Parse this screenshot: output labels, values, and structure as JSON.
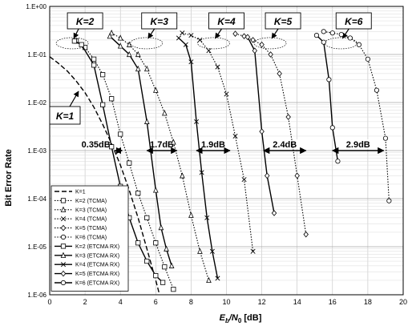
{
  "chart_data": {
    "type": "line",
    "title": "",
    "xlabel_main": "E",
    "xlabel_sub_b": "b",
    "xlabel_slash": "/N",
    "xlabel_sub_0": "0",
    "xlabel_unit": " [dB]",
    "ylabel": "Bit Error Rate",
    "xlim": [
      0,
      20
    ],
    "ylim": [
      1e-06,
      1
    ],
    "y_scale": "log",
    "grid": true,
    "x_ticks": [
      "0",
      "2",
      "4",
      "6",
      "8",
      "10",
      "12",
      "14",
      "16",
      "18",
      "20"
    ],
    "y_ticks": [
      "1.E+00",
      "1.E-01",
      "1.E-02",
      "1.E-03",
      "1.E-04",
      "1.E-05",
      "1.E-06"
    ],
    "legend_position": "bottom-left",
    "series": [
      {
        "name": "K=1",
        "style": "dash",
        "marker": "none",
        "x": [
          0,
          0.5,
          1,
          1.5,
          2,
          2.5,
          3,
          3.5,
          4,
          4.5,
          5,
          5.5,
          6,
          6.5
        ],
        "y": [
          0.09,
          0.065,
          0.045,
          0.028,
          0.016,
          0.008,
          0.0035,
          0.0014,
          0.0005,
          0.00015,
          4e-05,
          9e-06,
          2e-06,
          4e-07
        ]
      },
      {
        "name": "K=2 (TCMA)",
        "style": "dot",
        "marker": "square",
        "x": [
          1.5,
          2,
          2.5,
          3,
          3.5,
          4,
          4.5,
          5,
          5.5,
          6,
          6.5,
          7
        ],
        "y": [
          0.19,
          0.14,
          0.08,
          0.038,
          0.012,
          0.0022,
          0.00055,
          0.00013,
          4e-05,
          1.2e-05,
          3.8e-06,
          1.3e-06
        ]
      },
      {
        "name": "K=3 (TCMA)",
        "style": "dot",
        "marker": "triangle",
        "x": [
          3.5,
          4,
          4.5,
          5,
          5.5,
          6,
          6.5,
          7,
          7.5,
          8,
          8.5,
          9
        ],
        "y": [
          0.28,
          0.22,
          0.16,
          0.1,
          0.05,
          0.018,
          0.006,
          0.0015,
          0.0003,
          4.5e-05,
          8e-06,
          2e-06
        ]
      },
      {
        "name": "K=4 (TCMA)",
        "style": "dot",
        "marker": "x",
        "x": [
          7.5,
          8,
          8.5,
          9,
          9.5,
          10,
          10.5,
          11,
          11.5
        ],
        "y": [
          0.28,
          0.25,
          0.2,
          0.12,
          0.055,
          0.015,
          0.002,
          0.00025,
          8e-06
        ]
      },
      {
        "name": "K=5 (TCMA)",
        "style": "dot",
        "marker": "diamond",
        "x": [
          10.5,
          11,
          11.5,
          12,
          12.5,
          13,
          13.5,
          14,
          14.5
        ],
        "y": [
          0.27,
          0.24,
          0.2,
          0.16,
          0.1,
          0.04,
          0.005,
          0.0003,
          1.8e-05
        ]
      },
      {
        "name": "K=6 (TCMA)",
        "style": "dot",
        "marker": "circle",
        "x": [
          15.5,
          16,
          16.5,
          17,
          17.5,
          18,
          18.5,
          19,
          19.2
        ],
        "y": [
          0.3,
          0.28,
          0.26,
          0.22,
          0.16,
          0.08,
          0.018,
          0.0018,
          9e-05
        ]
      },
      {
        "name": "K=2 (ETCMA RX)",
        "style": "solid",
        "marker": "square",
        "x": [
          1.4,
          1.8,
          2.5,
          3,
          3.5,
          4,
          4.5,
          5,
          5.5,
          6,
          6.4
        ],
        "y": [
          0.19,
          0.16,
          0.06,
          0.009,
          0.0012,
          0.00018,
          4e-05,
          1.2e-05,
          5e-06,
          2.5e-06,
          1.8e-06
        ]
      },
      {
        "name": "K=3 (ETCMA RX)",
        "style": "solid",
        "marker": "triangle",
        "x": [
          3.4,
          4,
          4.5,
          5,
          5.5,
          6,
          6.3,
          6.6,
          6.9
        ],
        "y": [
          0.24,
          0.15,
          0.1,
          0.05,
          0.004,
          0.00015,
          2.5e-05,
          9e-06,
          4e-06
        ]
      },
      {
        "name": "K=4 (ETCMA RX)",
        "style": "solid",
        "marker": "x",
        "x": [
          7.3,
          7.7,
          8,
          8.3,
          8.6,
          8.9,
          9.2,
          9.5
        ],
        "y": [
          0.22,
          0.16,
          0.07,
          0.004,
          0.00035,
          4e-05,
          8e-06,
          2.2e-06
        ]
      },
      {
        "name": "K=5 (ETCMA RX)",
        "style": "solid",
        "marker": "diamond",
        "x": [
          11.2,
          11.6,
          12,
          12.3,
          12.7
        ],
        "y": [
          0.23,
          0.12,
          0.0025,
          0.0003,
          5e-05
        ]
      },
      {
        "name": "K=6 (ETCMA RX)",
        "style": "solid",
        "marker": "circle",
        "x": [
          15.1,
          15.5,
          15.8,
          16,
          16.3
        ],
        "y": [
          0.25,
          0.18,
          0.03,
          0.003,
          0.0006
        ]
      }
    ],
    "k_labels": [
      {
        "text": "K=2",
        "x": 2.0
      },
      {
        "text": "K=3",
        "x": 6.2
      },
      {
        "text": "K=4",
        "x": 10.0
      },
      {
        "text": "K=5",
        "x": 13.2
      },
      {
        "text": "K=6",
        "x": 17.2
      }
    ],
    "k1_label": {
      "text": "K=1"
    },
    "gap_annotations": [
      {
        "text": "0.35dB",
        "x_from": 3.7,
        "x_to": 4.1
      },
      {
        "text": "1.7dB",
        "x_from": 5.5,
        "x_to": 7.2
      },
      {
        "text": "1.9dB",
        "x_from": 8.3,
        "x_to": 10.2
      },
      {
        "text": "2.4dB",
        "x_from": 12.1,
        "x_to": 14.5
      },
      {
        "text": "2.9dB",
        "x_from": 16.0,
        "x_to": 18.9
      }
    ]
  }
}
